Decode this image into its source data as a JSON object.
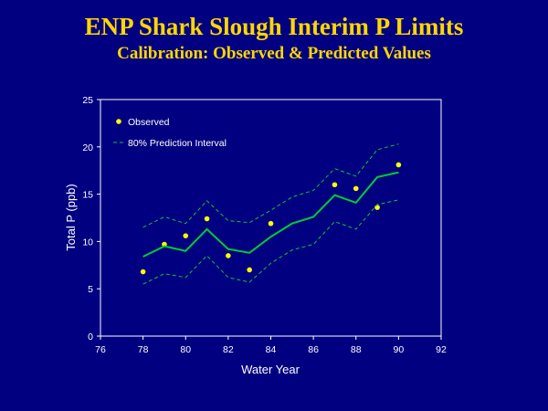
{
  "slide": {
    "title": "ENP Shark Slough Interim P Limits",
    "subtitle": "Calibration: Observed & Predicted Values",
    "background": "#000080",
    "title_color": "#FFD700"
  },
  "chart_data": {
    "type": "line",
    "xlabel": "Water Year",
    "ylabel": "Total P (ppb)",
    "xlim": [
      76,
      92
    ],
    "ylim": [
      0,
      25
    ],
    "x_ticks": [
      76,
      78,
      80,
      82,
      84,
      86,
      88,
      90,
      92
    ],
    "y_ticks": [
      0,
      5,
      10,
      15,
      20,
      25
    ],
    "legend_position": "top-left",
    "grid": false,
    "series": [
      {
        "name": "Observed",
        "style": "markers",
        "color": "#FFFF00",
        "x": [
          78,
          79,
          80,
          81,
          82,
          83,
          84,
          87,
          88,
          89,
          90
        ],
        "y": [
          6.8,
          9.7,
          10.6,
          12.4,
          8.5,
          7.0,
          11.9,
          16.0,
          15.6,
          13.6,
          18.1
        ]
      },
      {
        "name": "",
        "style": "line",
        "color": "#00CC33",
        "x": [
          78,
          79,
          80,
          81,
          82,
          83,
          84,
          85,
          86,
          87,
          88,
          89,
          90
        ],
        "y": [
          8.4,
          9.5,
          9.0,
          11.3,
          9.2,
          8.8,
          10.5,
          11.9,
          12.6,
          14.9,
          14.1,
          16.8,
          17.3
        ]
      },
      {
        "name": "80% Prediction Interval",
        "style": "dashed",
        "color": "#00CC33",
        "x": [
          78,
          79,
          80,
          81,
          82,
          83,
          84,
          85,
          86,
          87,
          88,
          89,
          90
        ],
        "y": [
          11.5,
          12.6,
          11.9,
          14.3,
          12.2,
          12.0,
          13.3,
          14.7,
          15.4,
          17.7,
          16.9,
          19.7,
          20.3
        ]
      },
      {
        "name": "",
        "style": "dashed",
        "color": "#00CC33",
        "x": [
          78,
          79,
          80,
          81,
          82,
          83,
          84,
          85,
          86,
          87,
          88,
          89,
          90
        ],
        "y": [
          5.5,
          6.6,
          6.2,
          8.5,
          6.2,
          5.7,
          7.7,
          9.1,
          9.7,
          12.1,
          11.3,
          13.9,
          14.4
        ]
      }
    ]
  }
}
